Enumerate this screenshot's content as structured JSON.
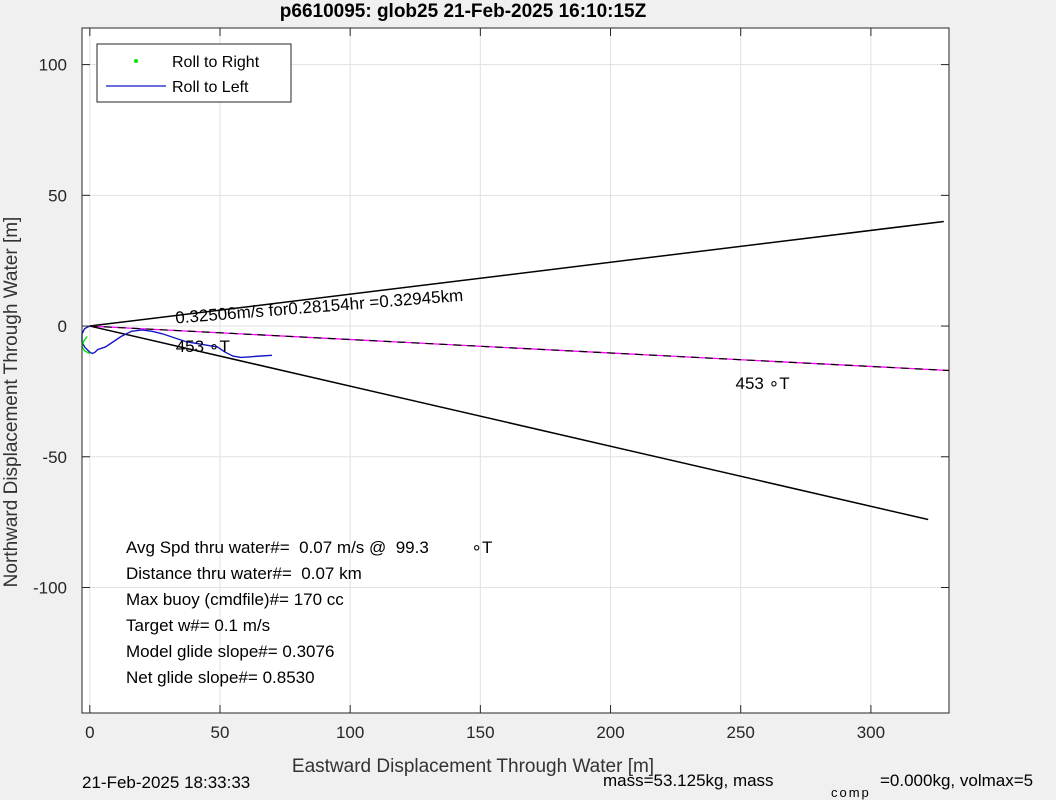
{
  "footer": {
    "timestamp": "21-Feb-2025 18:33:33",
    "mass_text": "mass=53.125kg, mass",
    "comp_sub": "comp",
    "comp_text": "=0.000kg, volmax=5"
  },
  "chart_data": {
    "type": "line",
    "title": "p6610095: glob25 21-Feb-2025 16:10:15Z",
    "xlabel": "Eastward Displacement Through Water [m]",
    "ylabel": "Northward Displacement Through Water [m]",
    "xlim": [
      -3,
      330
    ],
    "ylim": [
      -148,
      114
    ],
    "xticks": [
      0,
      50,
      100,
      150,
      200,
      250,
      300
    ],
    "yticks": [
      100,
      50,
      0,
      -50,
      -100
    ],
    "grid": true,
    "legend_position": "top-left",
    "legend": [
      {
        "label": "Roll to Right",
        "marker": "dot",
        "color": "#00e000"
      },
      {
        "label": "Roll to Left",
        "marker": "line",
        "color": "#1515c8"
      }
    ],
    "series": [
      {
        "name": "Roll to Left",
        "color": "#1515c8",
        "x": [
          0,
          -2,
          -3,
          -3,
          -2,
          0,
          1,
          2,
          3,
          6,
          9,
          12,
          16,
          20,
          24,
          28,
          31,
          34,
          37,
          40,
          43,
          46,
          49,
          52,
          55,
          58,
          61,
          65,
          70
        ],
        "y": [
          0,
          -1,
          -3,
          -6,
          -8,
          -10,
          -10.5,
          -10,
          -9,
          -8,
          -6,
          -4,
          -2,
          -1.5,
          -2,
          -3,
          -4,
          -5,
          -6,
          -6.5,
          -7,
          -7.5,
          -8,
          -10,
          -11.5,
          -12,
          -11.8,
          -11.5,
          -11.2
        ]
      },
      {
        "name": "Roll to Right",
        "color": "#00e000",
        "x": [
          -1,
          -2.5,
          -3,
          -2,
          0
        ],
        "y": [
          -4,
          -6,
          -8,
          -9.5,
          -10.5
        ]
      }
    ],
    "reference_lines": [
      {
        "color": "#000000",
        "x": [
          0,
          328
        ],
        "y": [
          0,
          40
        ]
      },
      {
        "color": "#000000",
        "x": [
          0,
          322
        ],
        "y": [
          0,
          -74
        ]
      },
      {
        "color": "#ff00ff",
        "dashed_overlay": true,
        "x": [
          0,
          330
        ],
        "y": [
          0,
          -17
        ]
      }
    ],
    "annotations": [
      {
        "text": "0.32506m/s for0.28154hr =0.32945km",
        "x": 33,
        "y": 1,
        "rotation": -4.5
      },
      {
        "text": "453 ∘T",
        "x": 33,
        "y": -10
      },
      {
        "text": "453 ∘T",
        "x": 248,
        "y": -24
      }
    ],
    "stats": [
      "Avg Spd thru water#=  0.07 m/s @  99.3         ∘T",
      "Distance thru water#=  0.07 km",
      "Max buoy (cmdfile)#= 170 cc",
      "Target w#= 0.1 m/s",
      "Model glide slope#= 0.3076",
      "Net glide slope#= 0.8530"
    ]
  }
}
